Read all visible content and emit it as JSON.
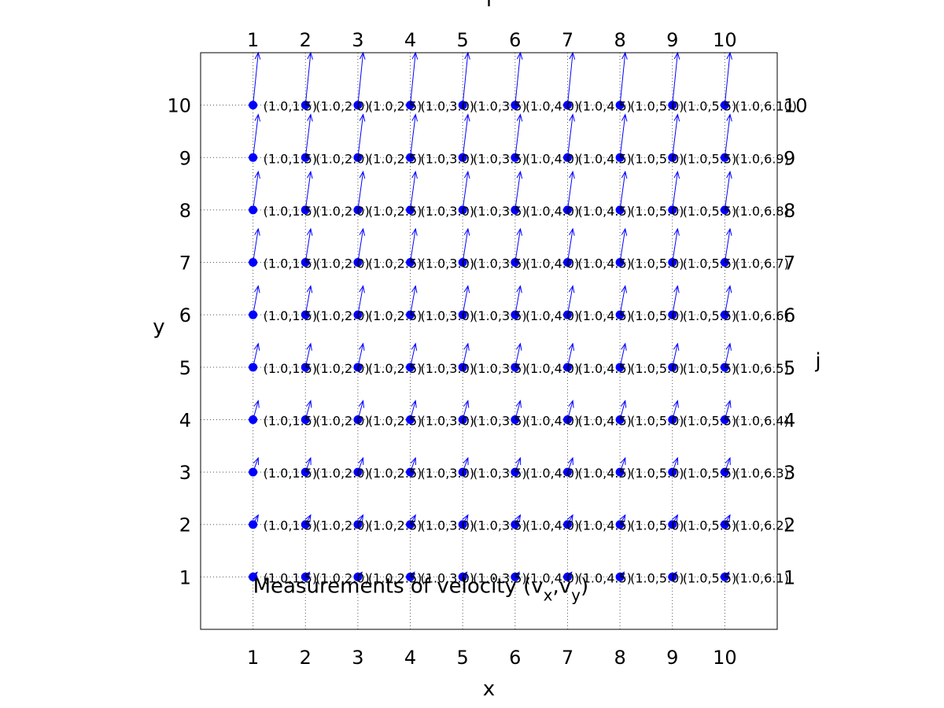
{
  "chart_data": {
    "type": "scatter",
    "title": "",
    "xlabel": "x",
    "ylabel": "y",
    "top_label": "i",
    "right_label": "j",
    "xlim": [
      0,
      11
    ],
    "ylim": [
      0,
      11
    ],
    "x_ticks": [
      "1",
      "2",
      "3",
      "4",
      "5",
      "6",
      "7",
      "8",
      "9",
      "10"
    ],
    "y_ticks": [
      "1",
      "2",
      "3",
      "4",
      "5",
      "6",
      "7",
      "8",
      "9",
      "10"
    ],
    "top_ticks": [
      "1",
      "2",
      "3",
      "4",
      "5",
      "6",
      "7",
      "8",
      "9",
      "10"
    ],
    "right_ticks": [
      "1",
      "2",
      "3",
      "4",
      "5",
      "6",
      "7",
      "8",
      "9",
      "10"
    ],
    "grid": "dotted",
    "grid_x_values": [
      1,
      2,
      3,
      4,
      5,
      6,
      7,
      8,
      9,
      10
    ],
    "grid_y_values": [
      1,
      2,
      3,
      4,
      5,
      6,
      7,
      8,
      9,
      10
    ],
    "annotation": {
      "prefix": "Measurements of velocity (v",
      "sub_x": "x",
      "sep": ",v",
      "sub_y": "y",
      "suffix": ")",
      "x": 1,
      "y": 0.55
    },
    "points_x": [
      1,
      2,
      3,
      4,
      5,
      6,
      7,
      8,
      9,
      10
    ],
    "points_y": [
      1,
      2,
      3,
      4,
      5,
      6,
      7,
      8,
      9,
      10
    ],
    "row_labels": [
      [
        "(1.0,1.5)",
        "(1.0,2.0)",
        "(1.0,2.5)",
        "(1.0,3.0)",
        "(1.0,3.5)",
        "(1.0,4.0)",
        "(1.0,4.5)",
        "(1.0,5.0)",
        "(1.0,5.5)",
        "(1.0,6.1)"
      ],
      [
        "(1.0,1.5)",
        "(1.0,2.0)",
        "(1.0,2.5)",
        "(1.0,3.0)",
        "(1.0,3.5)",
        "(1.0,4.0)",
        "(1.0,4.5)",
        "(1.0,5.0)",
        "(1.0,5.5)",
        "(1.0,6.2)"
      ],
      [
        "(1.0,1.5)",
        "(1.0,2.0)",
        "(1.0,2.5)",
        "(1.0,3.0)",
        "(1.0,3.5)",
        "(1.0,4.0)",
        "(1.0,4.5)",
        "(1.0,5.0)",
        "(1.0,5.5)",
        "(1.0,6.3)"
      ],
      [
        "(1.0,1.5)",
        "(1.0,2.0)",
        "(1.0,2.5)",
        "(1.0,3.0)",
        "(1.0,3.5)",
        "(1.0,4.0)",
        "(1.0,4.5)",
        "(1.0,5.0)",
        "(1.0,5.5)",
        "(1.0,6.4)"
      ],
      [
        "(1.0,1.5)",
        "(1.0,2.0)",
        "(1.0,2.5)",
        "(1.0,3.0)",
        "(1.0,3.5)",
        "(1.0,4.0)",
        "(1.0,4.5)",
        "(1.0,5.0)",
        "(1.0,5.5)",
        "(1.0,6.5)"
      ],
      [
        "(1.0,1.5)",
        "(1.0,2.0)",
        "(1.0,2.5)",
        "(1.0,3.0)",
        "(1.0,3.5)",
        "(1.0,4.0)",
        "(1.0,4.5)",
        "(1.0,5.0)",
        "(1.0,5.5)",
        "(1.0,6.6)"
      ],
      [
        "(1.0,1.5)",
        "(1.0,2.0)",
        "(1.0,2.5)",
        "(1.0,3.0)",
        "(1.0,3.5)",
        "(1.0,4.0)",
        "(1.0,4.5)",
        "(1.0,5.0)",
        "(1.0,5.5)",
        "(1.0,6.7)"
      ],
      [
        "(1.0,1.5)",
        "(1.0,2.0)",
        "(1.0,2.5)",
        "(1.0,3.0)",
        "(1.0,3.5)",
        "(1.0,4.0)",
        "(1.0,4.5)",
        "(1.0,5.0)",
        "(1.0,5.5)",
        "(1.0,6.8)"
      ],
      [
        "(1.0,1.5)",
        "(1.0,2.0)",
        "(1.0,2.5)",
        "(1.0,3.0)",
        "(1.0,3.5)",
        "(1.0,4.0)",
        "(1.0,4.5)",
        "(1.0,5.0)",
        "(1.0,5.5)",
        "(1.0,6.9)"
      ],
      [
        "(1.0,1.5)",
        "(1.0,2.0)",
        "(1.0,2.5)",
        "(1.0,3.0)",
        "(1.0,3.5)",
        "(1.0,4.0)",
        "(1.0,4.5)",
        "(1.0,5.0)",
        "(1.0,5.5)",
        "(1.0,6.10)"
      ]
    ],
    "arrow_dx": [
      [
        0.08,
        0.08,
        0.08,
        0.08,
        0.08,
        0.08,
        0.08,
        0.08,
        0.08,
        0.08
      ],
      [
        0.1,
        0.1,
        0.1,
        0.1,
        0.1,
        0.1,
        0.1,
        0.1,
        0.1,
        0.1
      ],
      [
        0.1,
        0.1,
        0.1,
        0.1,
        0.1,
        0.1,
        0.1,
        0.1,
        0.1,
        0.1
      ],
      [
        0.1,
        0.1,
        0.1,
        0.1,
        0.1,
        0.1,
        0.1,
        0.1,
        0.1,
        0.1
      ],
      [
        0.1,
        0.1,
        0.1,
        0.1,
        0.1,
        0.1,
        0.1,
        0.1,
        0.1,
        0.1
      ],
      [
        0.1,
        0.1,
        0.1,
        0.1,
        0.1,
        0.1,
        0.1,
        0.1,
        0.1,
        0.1
      ],
      [
        0.1,
        0.1,
        0.1,
        0.1,
        0.1,
        0.1,
        0.1,
        0.1,
        0.1,
        0.1
      ],
      [
        0.1,
        0.1,
        0.1,
        0.1,
        0.1,
        0.1,
        0.1,
        0.1,
        0.1,
        0.1
      ],
      [
        0.1,
        0.1,
        0.1,
        0.1,
        0.1,
        0.1,
        0.1,
        0.1,
        0.1,
        0.1
      ],
      [
        0.1,
        0.1,
        0.1,
        0.1,
        0.1,
        0.1,
        0.1,
        0.1,
        0.1,
        0.1
      ]
    ],
    "arrow_dy": [
      [
        0.09,
        0.09,
        0.09,
        0.09,
        0.09,
        0.09,
        0.09,
        0.09,
        0.09,
        0.09
      ],
      [
        0.18,
        0.18,
        0.18,
        0.18,
        0.18,
        0.18,
        0.18,
        0.18,
        0.18,
        0.18
      ],
      [
        0.27,
        0.27,
        0.27,
        0.27,
        0.27,
        0.27,
        0.27,
        0.27,
        0.27,
        0.27
      ],
      [
        0.36,
        0.36,
        0.36,
        0.36,
        0.36,
        0.36,
        0.36,
        0.36,
        0.36,
        0.36
      ],
      [
        0.45,
        0.45,
        0.45,
        0.45,
        0.45,
        0.45,
        0.45,
        0.45,
        0.45,
        0.45
      ],
      [
        0.55,
        0.55,
        0.55,
        0.55,
        0.55,
        0.55,
        0.55,
        0.55,
        0.55,
        0.55
      ],
      [
        0.64,
        0.64,
        0.64,
        0.64,
        0.64,
        0.64,
        0.64,
        0.64,
        0.64,
        0.64
      ],
      [
        0.73,
        0.73,
        0.73,
        0.73,
        0.73,
        0.73,
        0.73,
        0.73,
        0.73,
        0.73
      ],
      [
        0.82,
        0.82,
        0.82,
        0.82,
        0.82,
        0.82,
        0.82,
        0.82,
        0.82,
        0.82
      ],
      [
        1.0,
        1.0,
        1.0,
        1.0,
        1.0,
        1.0,
        1.0,
        1.0,
        1.0,
        1.0
      ]
    ],
    "colors": {
      "marker": "#0000ff",
      "arrow": "#0000ff",
      "grid": "#555555",
      "axes": "#000000"
    }
  }
}
